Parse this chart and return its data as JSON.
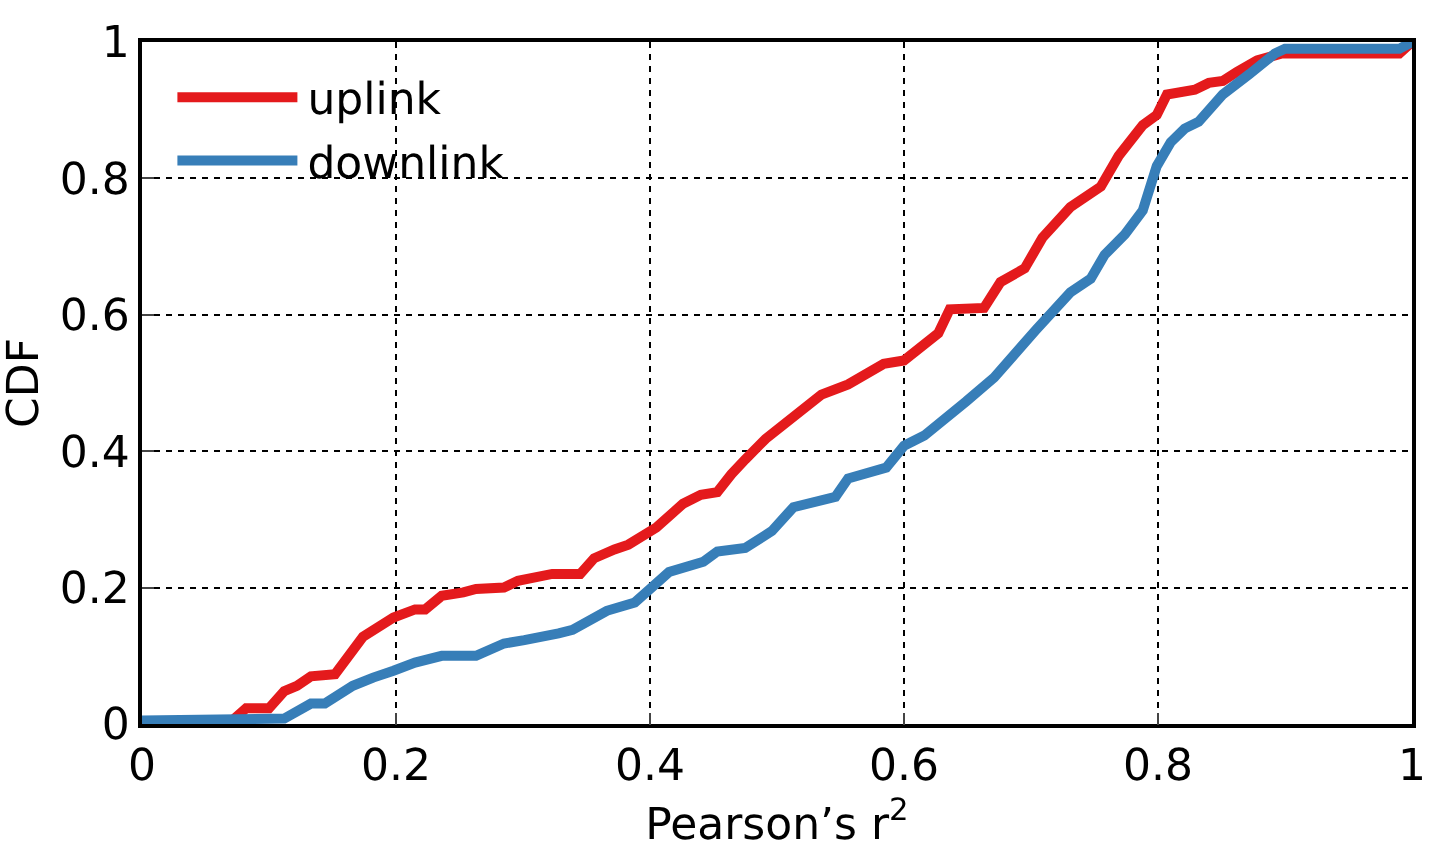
{
  "chart_data": {
    "type": "line",
    "xlabel": "Pearson’s r$^{2}$",
    "ylabel": "CDF",
    "xlim": [
      0,
      1
    ],
    "ylim": [
      0,
      1
    ],
    "xticks": [
      0,
      0.2,
      0.4,
      0.6,
      0.8,
      1
    ],
    "yticks": [
      0,
      0.2,
      0.4,
      0.6,
      0.8,
      1
    ],
    "grid": true,
    "legend": "top left",
    "marker": "none",
    "line_style": "solid",
    "series": [
      {
        "name": "uplink",
        "color": "#e41a1c",
        "x": [
          0,
          0.068,
          0.082,
          0.1,
          0.112,
          0.122,
          0.133,
          0.152,
          0.174,
          0.198,
          0.215,
          0.223,
          0.236,
          0.253,
          0.263,
          0.285,
          0.296,
          0.323,
          0.345,
          0.356,
          0.372,
          0.383,
          0.405,
          0.426,
          0.44,
          0.453,
          0.464,
          0.475,
          0.491,
          0.535,
          0.556,
          0.584,
          0.6,
          0.627,
          0.636,
          0.663,
          0.676,
          0.695,
          0.709,
          0.731,
          0.755,
          0.769,
          0.788,
          0.799,
          0.807,
          0.829,
          0.84,
          0.851,
          0.862,
          0.878,
          0.897,
          0.99,
          1
        ],
        "values": [
          0,
          0,
          0.023,
          0.023,
          0.048,
          0.056,
          0.07,
          0.073,
          0.128,
          0.156,
          0.168,
          0.168,
          0.188,
          0.193,
          0.198,
          0.2,
          0.21,
          0.22,
          0.22,
          0.243,
          0.256,
          0.263,
          0.288,
          0.323,
          0.336,
          0.34,
          0.366,
          0.388,
          0.418,
          0.483,
          0.498,
          0.528,
          0.533,
          0.573,
          0.608,
          0.61,
          0.648,
          0.668,
          0.713,
          0.758,
          0.788,
          0.833,
          0.878,
          0.893,
          0.923,
          0.93,
          0.94,
          0.943,
          0.956,
          0.973,
          0.983,
          0.983,
          1
        ]
      },
      {
        "name": "downlink",
        "color": "#377eb8",
        "x": [
          0,
          0.112,
          0.133,
          0.144,
          0.166,
          0.182,
          0.198,
          0.215,
          0.236,
          0.263,
          0.285,
          0.301,
          0.328,
          0.339,
          0.366,
          0.388,
          0.4,
          0.415,
          0.442,
          0.453,
          0.475,
          0.496,
          0.513,
          0.546,
          0.556,
          0.586,
          0.6,
          0.616,
          0.649,
          0.671,
          0.704,
          0.731,
          0.747,
          0.758,
          0.774,
          0.788,
          0.799,
          0.81,
          0.821,
          0.832,
          0.851,
          0.872,
          0.892,
          0.9,
          0.99,
          1
        ],
        "values": [
          0.005,
          0.008,
          0.03,
          0.03,
          0.056,
          0.068,
          0.078,
          0.09,
          0.1,
          0.1,
          0.118,
          0.123,
          0.133,
          0.138,
          0.166,
          0.178,
          0.198,
          0.223,
          0.238,
          0.253,
          0.258,
          0.283,
          0.318,
          0.333,
          0.36,
          0.376,
          0.408,
          0.423,
          0.473,
          0.508,
          0.578,
          0.633,
          0.653,
          0.688,
          0.718,
          0.753,
          0.818,
          0.853,
          0.873,
          0.883,
          0.923,
          0.953,
          0.983,
          0.99,
          0.99,
          1
        ]
      }
    ]
  }
}
